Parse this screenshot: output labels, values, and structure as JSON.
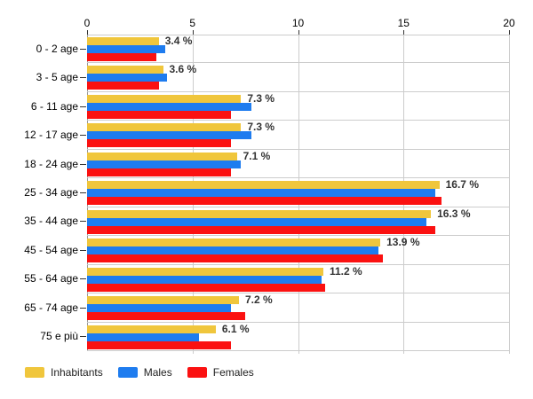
{
  "chart_data": {
    "type": "bar",
    "orientation": "horizontal",
    "title": "",
    "categories": [
      "0 - 2 age",
      "3 - 5 age",
      "6 - 11 age",
      "12 - 17 age",
      "18 - 24 age",
      "25 - 34 age",
      "35 - 44 age",
      "45 - 54 age",
      "55 - 64 age",
      "65 - 74 age",
      "75 e più"
    ],
    "series": [
      {
        "name": "Inhabitants",
        "color": "#F0C63C",
        "values": [
          3.4,
          3.6,
          7.3,
          7.3,
          7.1,
          16.7,
          16.3,
          13.9,
          11.2,
          7.2,
          6.1
        ]
      },
      {
        "name": "Males",
        "color": "#1E7CEF",
        "values": [
          3.7,
          3.8,
          7.8,
          7.8,
          7.3,
          16.5,
          16.1,
          13.8,
          11.1,
          6.8,
          5.3
        ]
      },
      {
        "name": "Females",
        "color": "#FB1111",
        "values": [
          3.3,
          3.4,
          6.8,
          6.8,
          6.8,
          16.8,
          16.5,
          14.0,
          11.3,
          7.5,
          6.8
        ]
      }
    ],
    "value_labels": [
      "3.4 %",
      "3.6 %",
      "7.3 %",
      "7.3 %",
      "7.1 %",
      "16.7 %",
      "16.3 %",
      "13.9 %",
      "11.2 %",
      "7.2 %",
      "6.1 %"
    ],
    "value_labels_for": "Inhabitants",
    "x_axis": {
      "position": "top",
      "min": 0,
      "max": 20,
      "ticks": [
        0,
        5,
        10,
        15,
        20
      ]
    },
    "grid": {
      "vertical": true,
      "horizontal": true
    },
    "legend_position": "bottom",
    "style_colors": {
      "background": "#FFFFFF",
      "gridline": "#CCCCCC",
      "axis_line": "#999999",
      "tick_mark": "#333333",
      "category_text": "#000000",
      "tick_label_text": "#000000",
      "value_label_text": "#333333",
      "legend_text": "#222222"
    }
  }
}
